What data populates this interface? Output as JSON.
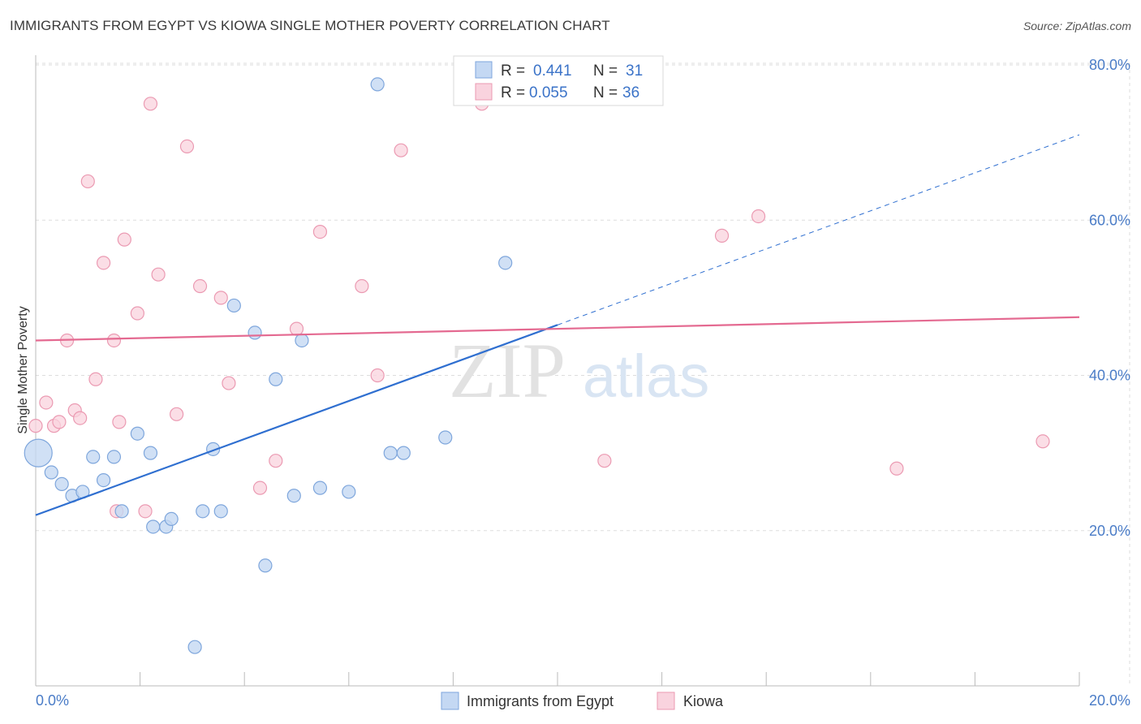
{
  "header": {
    "title": "IMMIGRANTS FROM EGYPT VS KIOWA SINGLE MOTHER POVERTY CORRELATION CHART",
    "source": "Source: ZipAtlas.com"
  },
  "watermark": {
    "part1": "ZIP",
    "part2": "atlas"
  },
  "legend_box": {
    "rows": [
      {
        "r_label": "R =",
        "r_value": "0.441",
        "n_label": "N =",
        "n_value": "31"
      },
      {
        "r_label": "R =",
        "r_value": "0.055",
        "n_label": "N =",
        "n_value": "36"
      }
    ]
  },
  "colors": {
    "egypt_fill": "#c4d8f3",
    "egypt_stroke": "#7ea6dc",
    "egypt_line": "#2f6fd0",
    "kiowa_fill": "#f9d3de",
    "kiowa_stroke": "#eb9ab2",
    "kiowa_line": "#e46a91",
    "grid": "#dddddd",
    "tick_text": "#4a7cc7"
  },
  "chart_data": {
    "type": "scatter",
    "title": "IMMIGRANTS FROM EGYPT VS KIOWA SINGLE MOTHER POVERTY CORRELATION CHART",
    "xlabel": "",
    "ylabel": "Single Mother Poverty",
    "xlim": [
      0,
      20
    ],
    "ylim": [
      0,
      80
    ],
    "x_tick_labels": [
      "0.0%",
      "20.0%"
    ],
    "y_tick_values": [
      20,
      40,
      60,
      80
    ],
    "y_tick_labels": [
      "20.0%",
      "40.0%",
      "60.0%",
      "80.0%"
    ],
    "legend": [
      "Immigrants from Egypt",
      "Kiowa"
    ],
    "series": [
      {
        "name": "Immigrants from Egypt",
        "r": 0.441,
        "n": 31,
        "trend": {
          "x0": 0,
          "y0": 22.0,
          "x1": 10.0,
          "y1": 46.5,
          "dashed_to_x": 20.0,
          "dashed_to_y": 71.0
        },
        "points": [
          {
            "x": 0.05,
            "y": 30.0,
            "big": true
          },
          {
            "x": 0.3,
            "y": 27.5
          },
          {
            "x": 0.5,
            "y": 26.0
          },
          {
            "x": 0.7,
            "y": 24.5
          },
          {
            "x": 0.9,
            "y": 25.0
          },
          {
            "x": 1.1,
            "y": 29.5
          },
          {
            "x": 1.3,
            "y": 26.5
          },
          {
            "x": 1.5,
            "y": 29.5
          },
          {
            "x": 1.65,
            "y": 22.5
          },
          {
            "x": 1.95,
            "y": 32.5
          },
          {
            "x": 2.2,
            "y": 30.0
          },
          {
            "x": 2.25,
            "y": 20.5
          },
          {
            "x": 2.5,
            "y": 20.5
          },
          {
            "x": 2.6,
            "y": 21.5
          },
          {
            "x": 3.05,
            "y": 5.0
          },
          {
            "x": 3.2,
            "y": 22.5
          },
          {
            "x": 3.4,
            "y": 30.5
          },
          {
            "x": 3.55,
            "y": 22.5
          },
          {
            "x": 3.8,
            "y": 49.0
          },
          {
            "x": 4.2,
            "y": 45.5
          },
          {
            "x": 4.4,
            "y": 15.5
          },
          {
            "x": 4.6,
            "y": 39.5
          },
          {
            "x": 4.95,
            "y": 24.5
          },
          {
            "x": 5.1,
            "y": 44.5
          },
          {
            "x": 5.45,
            "y": 25.5
          },
          {
            "x": 6.0,
            "y": 25.0
          },
          {
            "x": 6.55,
            "y": 77.5
          },
          {
            "x": 6.8,
            "y": 30.0
          },
          {
            "x": 7.05,
            "y": 30.0
          },
          {
            "x": 7.85,
            "y": 32.0
          },
          {
            "x": 9.0,
            "y": 54.5
          }
        ]
      },
      {
        "name": "Kiowa",
        "r": 0.055,
        "n": 36,
        "trend": {
          "x0": 0,
          "y0": 44.5,
          "x1": 20.0,
          "y1": 47.5
        },
        "points": [
          {
            "x": 0.0,
            "y": 33.5
          },
          {
            "x": 0.2,
            "y": 36.5
          },
          {
            "x": 0.35,
            "y": 33.5
          },
          {
            "x": 0.45,
            "y": 34.0
          },
          {
            "x": 0.6,
            "y": 44.5
          },
          {
            "x": 0.75,
            "y": 35.5
          },
          {
            "x": 0.85,
            "y": 34.5
          },
          {
            "x": 1.0,
            "y": 65.0
          },
          {
            "x": 1.15,
            "y": 39.5
          },
          {
            "x": 1.3,
            "y": 54.5
          },
          {
            "x": 1.5,
            "y": 44.5
          },
          {
            "x": 1.55,
            "y": 22.5
          },
          {
            "x": 1.6,
            "y": 34.0
          },
          {
            "x": 1.7,
            "y": 57.5
          },
          {
            "x": 1.95,
            "y": 48.0
          },
          {
            "x": 2.1,
            "y": 22.5
          },
          {
            "x": 2.2,
            "y": 75.0
          },
          {
            "x": 2.35,
            "y": 53.0
          },
          {
            "x": 2.7,
            "y": 35.0
          },
          {
            "x": 2.9,
            "y": 69.5
          },
          {
            "x": 3.15,
            "y": 51.5
          },
          {
            "x": 3.55,
            "y": 50.0
          },
          {
            "x": 3.7,
            "y": 39.0
          },
          {
            "x": 4.3,
            "y": 25.5
          },
          {
            "x": 4.6,
            "y": 29.0
          },
          {
            "x": 5.0,
            "y": 46.0
          },
          {
            "x": 5.45,
            "y": 58.5
          },
          {
            "x": 6.25,
            "y": 51.5
          },
          {
            "x": 6.55,
            "y": 40.0
          },
          {
            "x": 7.0,
            "y": 69.0
          },
          {
            "x": 8.55,
            "y": 75.0
          },
          {
            "x": 10.9,
            "y": 29.0
          },
          {
            "x": 13.15,
            "y": 58.0
          },
          {
            "x": 13.85,
            "y": 60.5
          },
          {
            "x": 16.5,
            "y": 28.0
          },
          {
            "x": 19.3,
            "y": 31.5
          }
        ]
      }
    ]
  }
}
